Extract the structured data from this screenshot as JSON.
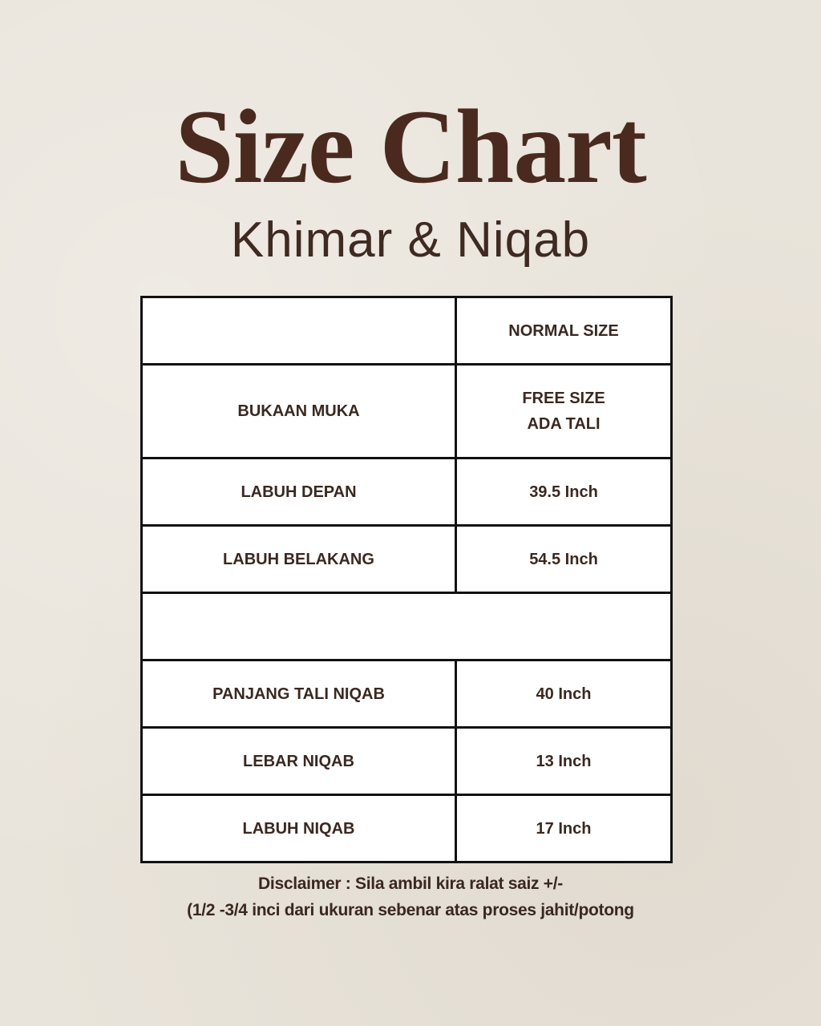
{
  "title": "Size Chart",
  "subtitle": "Khimar & Niqab",
  "table": {
    "header": [
      "",
      "NORMAL SIZE"
    ],
    "rows": [
      {
        "label": "BUKAAN MUKA",
        "value_line1": "FREE SIZE",
        "value_line2": "ADA TALI"
      },
      {
        "label": "LABUH DEPAN",
        "value": "39.5 Inch"
      },
      {
        "label": "LABUH BELAKANG",
        "value": "54.5 Inch"
      },
      {
        "label": "PANJANG TALI NIQAB",
        "value": "40 Inch"
      },
      {
        "label": "LEBAR NIQAB",
        "value": "13 Inch"
      },
      {
        "label": "LABUH NIQAB",
        "value": "17 Inch"
      }
    ]
  },
  "disclaimer": {
    "line1": "Disclaimer : Sila ambil kira ralat saiz +/-",
    "line2": "(1/2 -3/4 inci dari ukuran sebenar atas proses jahit/potong"
  },
  "colors": {
    "background": "#e9e4db",
    "title": "#4a2a1f",
    "text": "#3a2820",
    "border": "#111111"
  }
}
